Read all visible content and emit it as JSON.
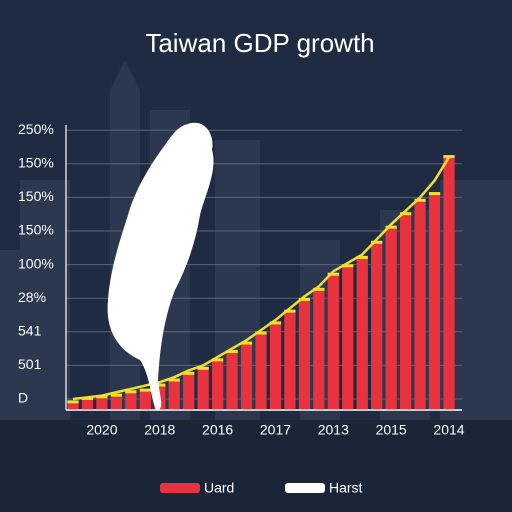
{
  "chart_data": {
    "type": "bar",
    "title": "Taiwan GDP growth",
    "categories": [
      null,
      null,
      "2020",
      null,
      null,
      null,
      "2018",
      null,
      null,
      null,
      "2016",
      null,
      null,
      null,
      "2017",
      null,
      null,
      null,
      "2013",
      null,
      null,
      null,
      "2015",
      null,
      null,
      null,
      "2014"
    ],
    "series": [
      {
        "name": "Uard",
        "color": "#e8333f",
        "values": [
          -0.1,
          0,
          0.05,
          0.1,
          0.2,
          0.25,
          0.4,
          0.55,
          0.75,
          0.9,
          1.15,
          1.4,
          1.65,
          1.95,
          2.25,
          2.6,
          2.95,
          3.25,
          3.7,
          3.95,
          4.2,
          4.65,
          5.1,
          5.5,
          5.9,
          6.1,
          7.2
        ]
      },
      {
        "name": "Harst",
        "color": "#ffffff",
        "line_color": "#f2df2a",
        "values": [
          0,
          0.05,
          0.1,
          0.2,
          0.3,
          0.4,
          0.5,
          0.65,
          0.85,
          1.0,
          1.25,
          1.5,
          1.75,
          2.05,
          2.35,
          2.7,
          3.05,
          3.35,
          3.8,
          4.05,
          4.3,
          4.75,
          5.2,
          5.6,
          6.0,
          6.5,
          7.2
        ]
      }
    ],
    "ylim": [
      -0.3,
      8.3
    ],
    "yticks": [
      {
        "value": 0,
        "label": "D"
      },
      {
        "value": 1,
        "label": "501"
      },
      {
        "value": 2,
        "label": "541"
      },
      {
        "value": 3,
        "label": "28%"
      },
      {
        "value": 4,
        "label": "100%"
      },
      {
        "value": 5,
        "label": "150%"
      },
      {
        "value": 6,
        "label": "150%"
      },
      {
        "value": 7,
        "label": "150%"
      },
      {
        "value": 8,
        "label": "250%"
      }
    ],
    "grid": true
  }
}
